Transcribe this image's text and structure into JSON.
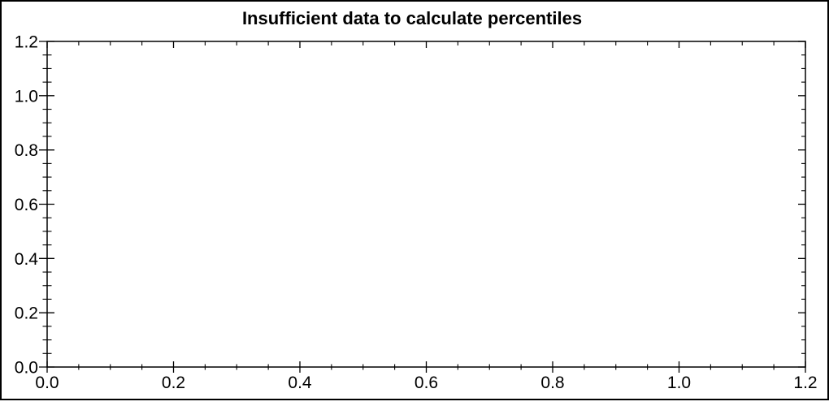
{
  "chart_data": {
    "type": "scatter",
    "title": "Insufficient data to calculate percentiles",
    "series": [],
    "x_tick_labels": [
      "0.0",
      "0.2",
      "0.4",
      "0.6",
      "0.8",
      "1.0",
      "1.2"
    ],
    "y_tick_labels": [
      "0.0",
      "0.2",
      "0.4",
      "0.6",
      "0.8",
      "1.0",
      "1.2"
    ],
    "xlim": [
      0.0,
      1.2
    ],
    "ylim": [
      0.0,
      1.2
    ],
    "xlabel": "",
    "ylabel": "",
    "minor_ticks_between_major": 3,
    "grid": false,
    "legend": false,
    "axes_color": "#000000",
    "background_color": "#ffffff"
  }
}
